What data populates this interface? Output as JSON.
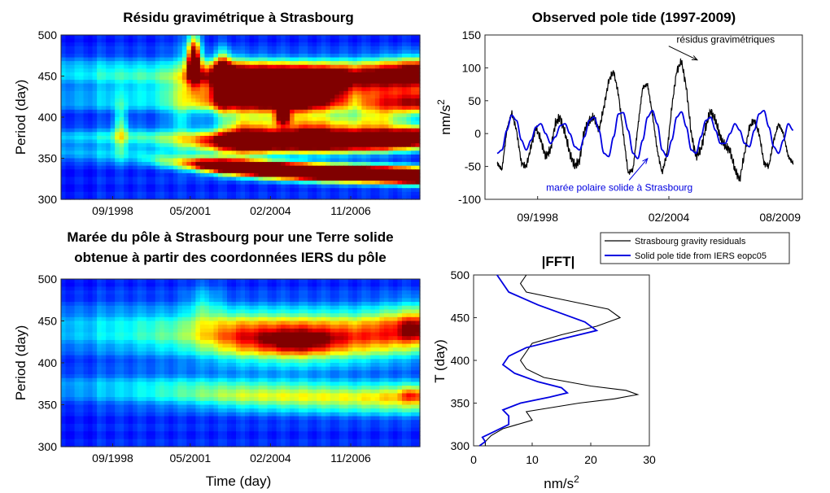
{
  "colors": {
    "jet": [
      "#00008f",
      "#0000ff",
      "#0080ff",
      "#00ffff",
      "#80ff80",
      "#ffff00",
      "#ff8000",
      "#ff0000",
      "#800000"
    ],
    "residuals": "#000000",
    "pole_tide": "#0000e0"
  },
  "chart_data": [
    {
      "type": "heatmap",
      "title": "Résidu gravimétrique à Strasbourg",
      "xlabel": "",
      "ylabel": "Period (day)",
      "xticks": [
        "09/1998",
        "05/2001",
        "02/2004",
        "11/2006"
      ],
      "xtick_pos": [
        1998.67,
        2001.33,
        2004.08,
        2006.83
      ],
      "xlim": [
        1996.9,
        2009.2
      ],
      "yticks": [
        300,
        350,
        400,
        450,
        500
      ],
      "ylim": [
        300,
        500
      ],
      "bands": [
        {
          "t": [
            1996.9,
            1999.5,
            2001.0,
            2002.5,
            2004.0,
            2006.0,
            2008.0,
            2009.2
          ],
          "p": [
            355,
            352,
            345,
            340,
            336,
            332,
            330,
            328
          ],
          "w": 9,
          "a": [
            0.2,
            0.25,
            0.6,
            1.9,
            2.3,
            2.4,
            2.4,
            2.4
          ]
        },
        {
          "t": [
            1996.9,
            1999.5,
            2001.0,
            2002.5,
            2004.0,
            2006.0,
            2008.0,
            2009.2
          ],
          "p": [
            375,
            375,
            372,
            370,
            370,
            370,
            372,
            375
          ],
          "w": 12,
          "a": [
            0.25,
            0.35,
            0.5,
            1.2,
            1.5,
            1.6,
            1.8,
            1.8
          ]
        },
        {
          "t": [
            1996.9,
            1999.0,
            2001.0,
            2003.0,
            2005.0,
            2007.0,
            2009.2
          ],
          "p": [
            455,
            452,
            450,
            448,
            445,
            448,
            452
          ],
          "w": 18,
          "a": [
            0.3,
            0.35,
            0.4,
            1.8,
            2.2,
            1.3,
            1.6
          ]
        },
        {
          "t": [
            1996.9,
            1999.0,
            2001.0,
            2003.0,
            2005.0,
            2007.0,
            2009.2
          ],
          "p": [
            420,
            420,
            420,
            420,
            420,
            420,
            418
          ],
          "w": 14,
          "a": [
            0.2,
            0.25,
            0.3,
            1.2,
            1.5,
            0.5,
            1.1
          ]
        }
      ],
      "blobs": [
        {
          "t": 2001.45,
          "p": 470,
          "wt": 0.22,
          "wp": 28,
          "a": 1.3
        },
        {
          "t": 2002.45,
          "p": 445,
          "wt": 0.3,
          "wp": 28,
          "a": 1.2
        },
        {
          "t": 1998.95,
          "p": 385,
          "wt": 0.25,
          "wp": 30,
          "a": 0.35
        },
        {
          "t": 2004.5,
          "p": 400,
          "wt": 0.3,
          "wp": 10,
          "a": 0.8
        },
        {
          "t": 2003.2,
          "p": 380,
          "wt": 0.9,
          "wp": 25,
          "a": 0.7
        },
        {
          "t": 2005.5,
          "p": 385,
          "wt": 1.5,
          "wp": 20,
          "a": 0.8
        },
        {
          "t": 2007.8,
          "p": 395,
          "wt": 1.0,
          "wp": 22,
          "a": 0.5
        },
        {
          "t": 2001.0,
          "p": 420,
          "wt": 0.5,
          "wp": 60,
          "a": 0.25
        }
      ]
    },
    {
      "type": "line",
      "title": "Observed pole tide (1997-2009)",
      "ylabel": "nm/s",
      "ylabel_sup": "2",
      "xticks": [
        "09/1998",
        "02/2004",
        "08/2009"
      ],
      "xtick_pos": [
        1998.67,
        2004.08,
        2009.58
      ],
      "xlim": [
        1996.5,
        2009.58
      ],
      "yticks": [
        -100,
        -50,
        0,
        50,
        100,
        150
      ],
      "ylim": [
        -100,
        150
      ],
      "annotations": [
        {
          "text": "résidus gravimétriques",
          "x": 2006.42,
          "y": 138,
          "color": "#000000",
          "arrow_to": [
            2005.25,
            112
          ]
        },
        {
          "text": "marée polaire solide à Strasbourg",
          "x": 2002.04,
          "y": -87,
          "color": "#0000e0",
          "arrow_to": [
            2003.2,
            -38
          ]
        }
      ],
      "legend": [
        "Strasbourg gravity residuals",
        "Solid pole tide from IERS eopc05"
      ],
      "series": [
        {
          "name": "Strasbourg gravity residuals",
          "x": [
            1997.0,
            1997.2,
            1997.4,
            1997.6,
            1997.8,
            1998.0,
            1998.2,
            1998.4,
            1998.6,
            1998.8,
            1999.0,
            1999.2,
            1999.4,
            1999.6,
            1999.8,
            2000.0,
            2000.2,
            2000.4,
            2000.6,
            2000.8,
            2001.0,
            2001.2,
            2001.4,
            2001.6,
            2001.8,
            2002.0,
            2002.2,
            2002.4,
            2002.6,
            2002.8,
            2003.0,
            2003.2,
            2003.4,
            2003.6,
            2003.8,
            2004.0,
            2004.2,
            2004.4,
            2004.6,
            2004.8,
            2005.0,
            2005.2,
            2005.4,
            2005.6,
            2005.8,
            2006.0,
            2006.2,
            2006.4,
            2006.6,
            2006.8,
            2007.0,
            2007.2,
            2007.4,
            2007.6,
            2007.8,
            2008.0,
            2008.2,
            2008.4,
            2008.6,
            2008.8,
            2009.0,
            2009.2
          ],
          "y": [
            -45,
            -55,
            5,
            32,
            5,
            -45,
            -50,
            -20,
            10,
            -10,
            -35,
            -25,
            15,
            25,
            0,
            -30,
            -50,
            -40,
            5,
            20,
            25,
            5,
            40,
            80,
            95,
            60,
            0,
            -60,
            -55,
            10,
            70,
            75,
            30,
            -25,
            -60,
            -30,
            40,
            95,
            110,
            70,
            0,
            -35,
            -25,
            10,
            35,
            20,
            -5,
            -20,
            -25,
            -55,
            -70,
            -30,
            10,
            20,
            0,
            -45,
            -50,
            -10,
            15,
            0,
            -35,
            -45
          ]
        },
        {
          "name": "Solid pole tide from IERS eopc05",
          "x": [
            1997.0,
            1997.2,
            1997.4,
            1997.6,
            1997.8,
            1998.0,
            1998.2,
            1998.4,
            1998.6,
            1998.8,
            1999.0,
            1999.2,
            1999.4,
            1999.6,
            1999.8,
            2000.0,
            2000.2,
            2000.4,
            2000.6,
            2000.8,
            2001.0,
            2001.2,
            2001.4,
            2001.6,
            2001.8,
            2002.0,
            2002.2,
            2002.4,
            2002.6,
            2002.8,
            2003.0,
            2003.2,
            2003.4,
            2003.6,
            2003.8,
            2004.0,
            2004.2,
            2004.4,
            2004.6,
            2004.8,
            2005.0,
            2005.2,
            2005.4,
            2005.6,
            2005.8,
            2006.0,
            2006.2,
            2006.4,
            2006.6,
            2006.8,
            2007.0,
            2007.2,
            2007.4,
            2007.6,
            2007.8,
            2008.0,
            2008.2,
            2008.4,
            2008.6,
            2008.8,
            2009.0,
            2009.2
          ],
          "y": [
            -30,
            -25,
            5,
            28,
            20,
            -10,
            -25,
            -10,
            10,
            15,
            0,
            -15,
            -5,
            12,
            15,
            0,
            -20,
            -25,
            -5,
            20,
            25,
            5,
            -30,
            -35,
            -5,
            30,
            32,
            5,
            -30,
            -38,
            -10,
            25,
            35,
            15,
            -25,
            -35,
            -10,
            25,
            33,
            10,
            -25,
            -30,
            -5,
            20,
            25,
            5,
            -15,
            -15,
            0,
            15,
            5,
            -15,
            -20,
            5,
            30,
            35,
            10,
            -20,
            -30,
            -10,
            15,
            5
          ]
        }
      ]
    },
    {
      "type": "heatmap",
      "title": "Marée du pôle à Strasbourg pour une Terre solide",
      "subtitle": "obtenue à partir des coordonnées IERS du pôle",
      "xlabel": "Time (day)",
      "ylabel": "Period (day)",
      "xticks": [
        "09/1998",
        "05/2001",
        "02/2004",
        "11/2006"
      ],
      "xtick_pos": [
        1998.67,
        2001.33,
        2004.08,
        2006.83
      ],
      "xlim": [
        1996.9,
        2009.2
      ],
      "yticks": [
        300,
        350,
        400,
        450,
        500
      ],
      "ylim": [
        300,
        500
      ],
      "bands": [
        {
          "t": [
            1996.9,
            1999.0,
            2001.0,
            2003.0,
            2005.0,
            2007.0,
            2009.2
          ],
          "p": [
            440,
            438,
            435,
            432,
            430,
            432,
            440
          ],
          "w": 28,
          "a": [
            0.25,
            0.3,
            0.45,
            0.95,
            1.1,
            0.9,
            1.0
          ]
        },
        {
          "t": [
            1996.9,
            1999.0,
            2001.0,
            2003.0,
            2005.0,
            2007.0,
            2009.2
          ],
          "p": [
            370,
            368,
            366,
            362,
            360,
            358,
            358
          ],
          "w": 18,
          "a": [
            0.2,
            0.25,
            0.4,
            0.55,
            0.6,
            0.6,
            0.75
          ]
        }
      ],
      "blobs": [
        {
          "t": 2005.0,
          "p": 425,
          "wt": 1.2,
          "wp": 12,
          "a": 0.35
        },
        {
          "t": 2008.9,
          "p": 440,
          "wt": 0.4,
          "wp": 12,
          "a": 0.3
        },
        {
          "t": 2008.9,
          "p": 362,
          "wt": 0.35,
          "wp": 8,
          "a": 0.25
        },
        {
          "t": 2001.8,
          "p": 470,
          "wt": 0.6,
          "wp": 25,
          "a": 0.2
        }
      ]
    },
    {
      "type": "line",
      "title": "|FFT|",
      "xlabel": "nm/s",
      "xlabel_sup": "2",
      "ylabel": "T (day)",
      "xticks": [
        0,
        10,
        20,
        30
      ],
      "xlim": [
        0,
        30
      ],
      "yticks": [
        300,
        350,
        400,
        450,
        500
      ],
      "ylim": [
        300,
        500
      ],
      "series": [
        {
          "name": "Strasbourg gravity residuals",
          "T": [
            500,
            490,
            480,
            470,
            460,
            450,
            440,
            430,
            420,
            410,
            400,
            390,
            380,
            370,
            365,
            360,
            355,
            350,
            340,
            330,
            320,
            312,
            305,
            300
          ],
          "v": [
            9,
            8,
            9,
            16,
            23,
            25,
            21,
            15,
            10,
            9,
            8,
            9,
            12,
            20,
            26,
            28,
            24,
            18,
            9,
            10,
            5,
            3,
            2,
            2
          ]
        },
        {
          "name": "Solid pole tide from IERS eopc05",
          "T": [
            500,
            490,
            480,
            474,
            465,
            455,
            445,
            435,
            425,
            415,
            405,
            395,
            385,
            375,
            368,
            362,
            357,
            350,
            342,
            335,
            325,
            315,
            310,
            305,
            300
          ],
          "v": [
            4,
            5,
            6,
            8,
            11,
            15,
            19,
            21,
            15,
            9,
            6,
            5,
            7,
            11,
            15,
            16,
            13,
            8,
            5,
            6,
            6,
            3,
            1.5,
            2,
            1
          ]
        }
      ]
    }
  ]
}
